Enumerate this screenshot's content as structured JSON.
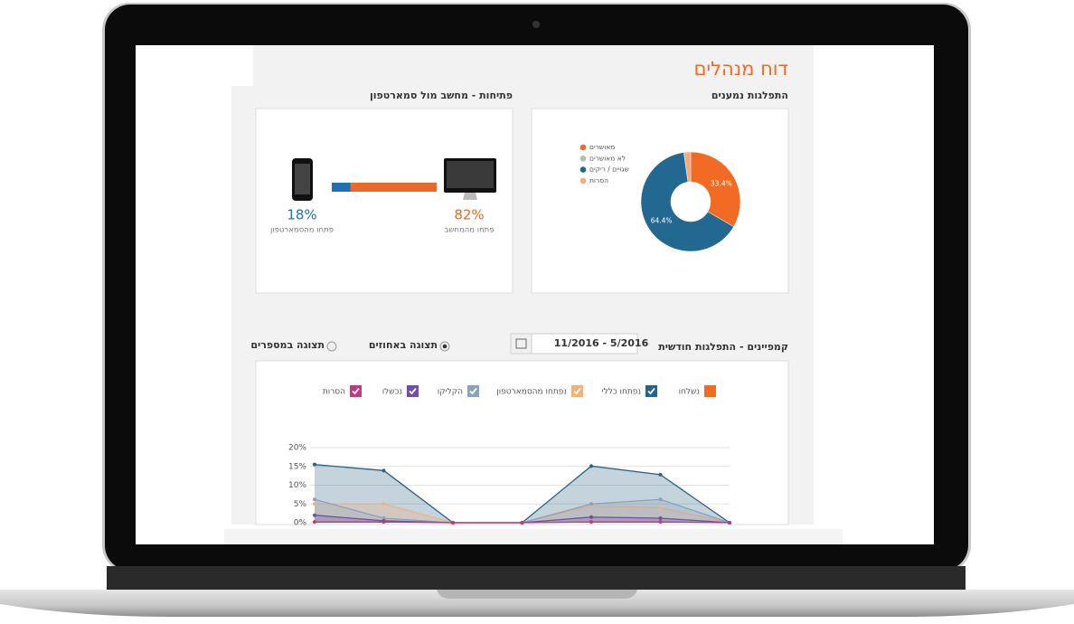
{
  "header": {
    "title": "דוח מנהלים"
  },
  "controls": {
    "date_range": "11/2016 - 5/2016",
    "view_options": [
      {
        "label": "תצוגה באחוזים",
        "selected": true
      },
      {
        "label": "תצוגה במספרים",
        "selected": false
      }
    ]
  },
  "chart_data": [
    {
      "type": "pie",
      "title": "התפלגות נמענים",
      "categories": [
        "מאושרים",
        "לא מאושרים",
        "שגויים / ריקים",
        "הסרות"
      ],
      "values": [
        33.4,
        0,
        64.4,
        2.2
      ],
      "value_labels": [
        "33.4%",
        null,
        "64.4%",
        null
      ],
      "colors": [
        "#f26b24",
        "#b9b9b9",
        "#236891",
        "#f6a983"
      ]
    },
    {
      "type": "bar",
      "title": "פתיחות - מחשב מול סמארטפון",
      "categories": [
        "פתחו מהסמארטפון",
        "פתחו מהמחשב"
      ],
      "values": [
        18,
        82
      ],
      "value_labels": [
        "18%",
        "82%"
      ],
      "colors": [
        "#1f6fb5",
        "#e8692a"
      ]
    },
    {
      "type": "area",
      "title": "קמפיינים - התפלגות חודשית",
      "categories": [
        null,
        null,
        null,
        null,
        null,
        null,
        null
      ],
      "series": [
        {
          "name": "נשלחו",
          "color": "#f26b24",
          "enabled": false,
          "values": [
            null,
            null,
            null,
            null,
            null,
            null,
            null
          ]
        },
        {
          "name": "נפתחו כללי",
          "color": "#2a6283",
          "enabled": true,
          "values": [
            15.5,
            13.9,
            0,
            0,
            15.1,
            12.8,
            0
          ]
        },
        {
          "name": "נפתחו מהסמארטפון",
          "color": "#f5b07d",
          "enabled": true,
          "values": [
            5,
            5,
            0,
            0,
            4.5,
            4,
            0
          ]
        },
        {
          "name": "הקליקו",
          "color": "#8aa2bd",
          "enabled": true,
          "values": [
            6.2,
            1.2,
            0,
            0,
            5,
            6.2,
            0
          ]
        },
        {
          "name": "נכשלו",
          "color": "#6e4ea6",
          "enabled": true,
          "values": [
            2,
            0.5,
            0,
            0,
            1.5,
            1.2,
            0
          ]
        },
        {
          "name": "הסרות",
          "color": "#c03b7b",
          "enabled": true,
          "values": [
            0.2,
            0.2,
            0,
            0,
            0.2,
            0.2,
            0
          ]
        }
      ],
      "ylim": [
        0,
        20
      ],
      "yticks": [
        {
          "value": 0,
          "label": "0%"
        },
        {
          "value": 5,
          "label": "5%"
        },
        {
          "value": 10,
          "label": "10%"
        },
        {
          "value": 15,
          "label": "15%"
        },
        {
          "value": 20,
          "label": "20%"
        }
      ],
      "grid": true
    }
  ]
}
